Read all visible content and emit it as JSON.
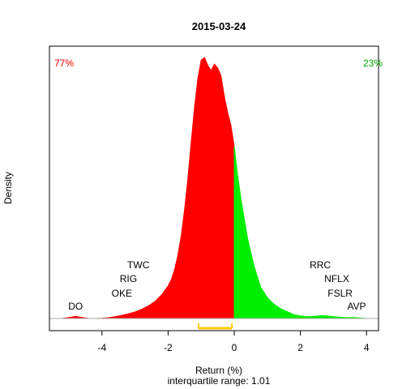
{
  "chart_data": {
    "type": "area",
    "title": "2015-03-24",
    "xlabel": "Return (%)",
    "subtitle": "interquartile range: 1.01",
    "ylabel": "Density",
    "xlim": [
      -5.7,
      4.4
    ],
    "x_ticks": [
      -4,
      -2,
      0,
      2,
      4
    ],
    "split_at": 0,
    "negative_share": "77%",
    "positive_share": "23%",
    "negative_color": "#ff0000",
    "positive_color": "#00ee00",
    "iqr_color": "#ffcc00",
    "iqr_range": [
      -1.08,
      -0.07
    ],
    "density_curve": {
      "x": [
        -5.2,
        -5.0,
        -4.8,
        -4.6,
        -4.4,
        -4.2,
        -4.0,
        -3.8,
        -3.6,
        -3.4,
        -3.2,
        -3.0,
        -2.8,
        -2.6,
        -2.4,
        -2.2,
        -2.0,
        -1.9,
        -1.8,
        -1.7,
        -1.6,
        -1.5,
        -1.4,
        -1.3,
        -1.2,
        -1.1,
        -1.0,
        -0.9,
        -0.8,
        -0.7,
        -0.6,
        -0.5,
        -0.4,
        -0.3,
        -0.2,
        -0.1,
        0.0,
        0.1,
        0.2,
        0.4,
        0.6,
        0.8,
        1.0,
        1.2,
        1.4,
        1.6,
        1.8,
        2.0,
        2.2,
        2.4,
        2.6,
        2.8,
        3.0,
        3.2,
        3.4,
        3.6,
        3.8,
        4.0
      ],
      "y": [
        0.0,
        0.004,
        0.008,
        0.004,
        0.0,
        0.0,
        0.001,
        0.003,
        0.007,
        0.012,
        0.018,
        0.025,
        0.035,
        0.048,
        0.065,
        0.09,
        0.125,
        0.15,
        0.19,
        0.245,
        0.32,
        0.42,
        0.54,
        0.68,
        0.81,
        0.92,
        0.99,
        1.0,
        0.97,
        0.95,
        0.975,
        0.96,
        0.93,
        0.85,
        0.79,
        0.74,
        0.66,
        0.55,
        0.46,
        0.31,
        0.2,
        0.12,
        0.08,
        0.055,
        0.038,
        0.026,
        0.015,
        0.01,
        0.007,
        0.008,
        0.011,
        0.01,
        0.007,
        0.005,
        0.003,
        0.004,
        0.002,
        0.0
      ]
    },
    "annotations": [
      {
        "text": "DO",
        "x": -4.8
      },
      {
        "text": "OKE",
        "x": -3.4
      },
      {
        "text": "RIG",
        "x": -3.2
      },
      {
        "text": "TWC",
        "x": -2.9
      },
      {
        "text": "RRC",
        "x": 2.6
      },
      {
        "text": "NFLX",
        "x": 3.1
      },
      {
        "text": "FSLR",
        "x": 3.2
      },
      {
        "text": "AVP",
        "x": 3.7
      }
    ]
  }
}
